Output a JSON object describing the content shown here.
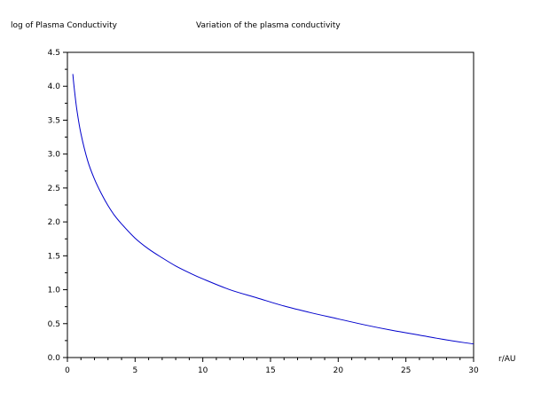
{
  "chart_data": {
    "type": "line",
    "title": "Variation of the plasma conductivity",
    "ylabel": "log of Plasma Conductivity",
    "xlabel": "r/AU",
    "xlim": [
      0,
      30
    ],
    "ylim": [
      0.0,
      4.5
    ],
    "grid": false,
    "legend": "none",
    "x_ticks": [
      "0",
      "5",
      "10",
      "15",
      "20",
      "25",
      "30"
    ],
    "y_ticks": [
      "0.0",
      "0.5",
      "1.0",
      "1.5",
      "2.0",
      "2.5",
      "3.0",
      "3.5",
      "4.0",
      "4.5"
    ],
    "line_color": "#0000cc",
    "series": [
      {
        "x": [
          0.4,
          0.5,
          0.7,
          1,
          1.5,
          2,
          2.5,
          3,
          3.5,
          4,
          5,
          6,
          7,
          8,
          9,
          10,
          12,
          14,
          16,
          18,
          20,
          22,
          24,
          26,
          28,
          30
        ],
        "y": [
          4.18,
          3.98,
          3.65,
          3.3,
          2.9,
          2.63,
          2.42,
          2.24,
          2.09,
          1.97,
          1.76,
          1.6,
          1.47,
          1.35,
          1.25,
          1.16,
          1.0,
          0.88,
          0.76,
          0.66,
          0.57,
          0.48,
          0.4,
          0.33,
          0.26,
          0.2
        ]
      }
    ]
  }
}
